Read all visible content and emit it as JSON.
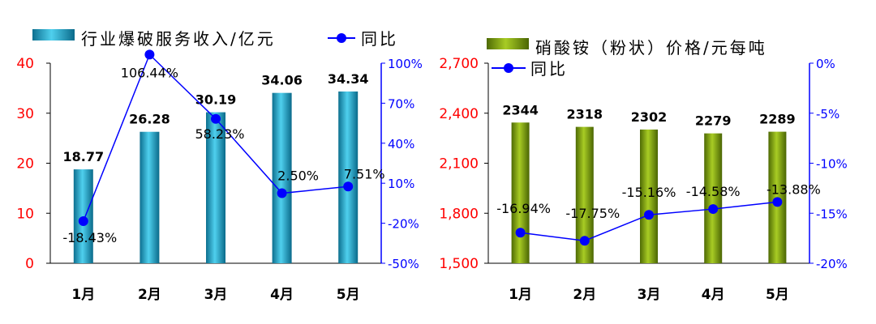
{
  "chart_data": [
    {
      "type": "bar+line",
      "categories": [
        "1月",
        "2月",
        "3月",
        "4月",
        "5月"
      ],
      "series": [
        {
          "name": "行业爆破服务收入/亿元",
          "type": "bar",
          "axis": "left",
          "values": [
            18.77,
            26.28,
            30.19,
            34.06,
            34.34
          ],
          "labels": [
            "18.77",
            "26.28",
            "30.19",
            "34.06",
            "34.34"
          ]
        },
        {
          "name": "同比",
          "type": "line",
          "axis": "right",
          "values": [
            -18.43,
            106.44,
            58.23,
            2.5,
            7.51
          ],
          "labels": [
            "-18.43%",
            "106.44%",
            "58.23%",
            "2.50%",
            "7.51%"
          ]
        }
      ],
      "left_axis": {
        "ylim": [
          0,
          40
        ],
        "ticks": [
          0,
          10,
          20,
          30,
          40
        ],
        "tick_labels": [
          "0",
          "10",
          "20",
          "30",
          "40"
        ]
      },
      "right_axis": {
        "ylim": [
          -50,
          100
        ],
        "ticks": [
          -50,
          -20,
          10,
          40,
          70,
          100
        ],
        "tick_labels": [
          "-50%",
          "-20%",
          "10%",
          "40%",
          "70%",
          "100%"
        ]
      },
      "legend_position": "top",
      "colors": {
        "bar": "#1aa7cc",
        "line": "#0000ff",
        "left_axis": "#ff0000",
        "right_axis": "#0000ff"
      }
    },
    {
      "type": "bar+line",
      "categories": [
        "1月",
        "2月",
        "3月",
        "4月",
        "5月"
      ],
      "series": [
        {
          "name": "硝酸铵（粉状）价格/元每吨",
          "type": "bar",
          "axis": "left",
          "values": [
            2344,
            2318,
            2302,
            2279,
            2289
          ],
          "labels": [
            "2344",
            "2318",
            "2302",
            "2279",
            "2289"
          ]
        },
        {
          "name": "同比",
          "type": "line",
          "axis": "right",
          "values": [
            -16.94,
            -17.75,
            -15.16,
            -14.58,
            -13.88
          ],
          "labels": [
            "-16.94%",
            "-17.75%",
            "-15.16%",
            "-14.58%",
            "-13.88%"
          ]
        }
      ],
      "left_axis": {
        "ylim": [
          1500,
          2700
        ],
        "ticks": [
          1500,
          1800,
          2100,
          2400,
          2700
        ],
        "tick_labels": [
          "1,500",
          "1,800",
          "2,100",
          "2,400",
          "2,700"
        ]
      },
      "right_axis": {
        "ylim": [
          -20,
          0
        ],
        "ticks": [
          -20,
          -15,
          -10,
          -5,
          0
        ],
        "tick_labels": [
          "-20%",
          "-15%",
          "-10%",
          "-5%",
          "0%"
        ]
      },
      "legend_position": "top",
      "colors": {
        "bar": "#7fa30f",
        "line": "#0000ff",
        "left_axis": "#ff0000",
        "right_axis": "#0000ff"
      }
    }
  ]
}
